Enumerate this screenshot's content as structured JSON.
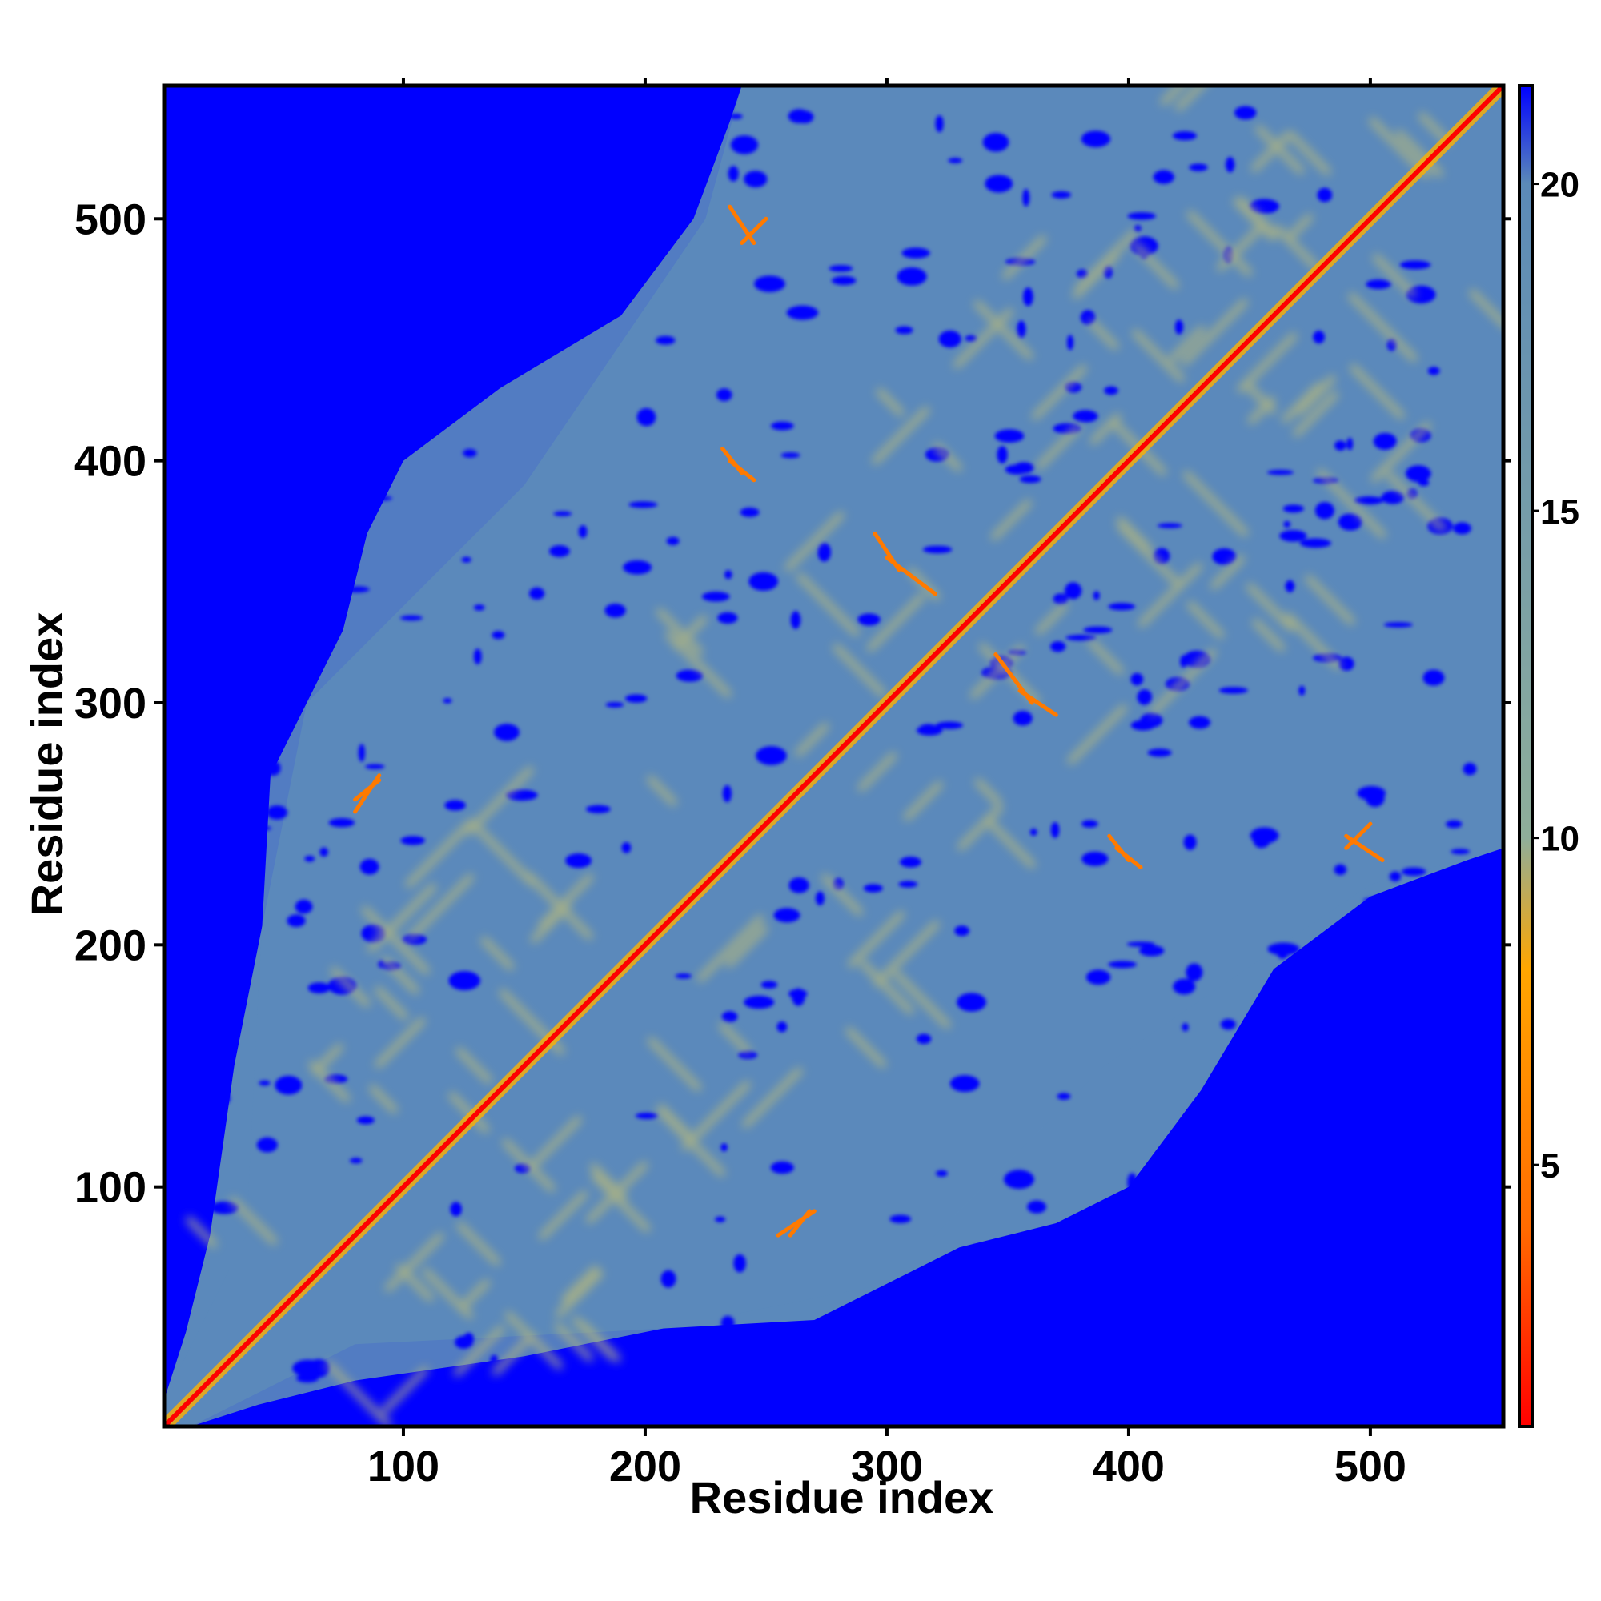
{
  "chart_data": {
    "type": "heatmap",
    "title": "",
    "xlabel": "Residue index",
    "ylabel": "Residue index",
    "xlim": [
      1,
      555
    ],
    "ylim": [
      1,
      555
    ],
    "x_ticks": [
      100,
      200,
      300,
      400,
      500
    ],
    "y_ticks": [
      100,
      200,
      300,
      400,
      500
    ],
    "x_tick_labels": [
      "100",
      "200",
      "300",
      "400",
      "500"
    ],
    "y_tick_labels": [
      "100",
      "200",
      "300",
      "400",
      "500"
    ],
    "colorbar": {
      "range": [
        1,
        21.5
      ],
      "ticks": [
        5,
        10,
        15,
        20
      ],
      "tick_labels": [
        "5",
        "10",
        "15",
        "20"
      ],
      "colors": [
        "#ff0000",
        "#ff6a00",
        "#ffa600",
        "#8fae9a",
        "#5b8ab8",
        "#0000ff"
      ],
      "stops": [
        1,
        4,
        8,
        10,
        20,
        21.5
      ]
    },
    "colors": {
      "far": "#0000ff",
      "medium": "#5b89bb",
      "near": "#ffa500",
      "contact": "#ff0000"
    },
    "description_tokens": {
      "diagonal": "contact",
      "secondary_diagonals": [
        {
          "from": [
            235,
            400
          ],
          "to": [
            245,
            392
          ]
        },
        {
          "from": [
            300,
            360
          ],
          "to": [
            320,
            345
          ]
        },
        {
          "from": [
            355,
            305
          ],
          "to": [
            370,
            295
          ]
        },
        {
          "from": [
            395,
            240
          ],
          "to": [
            405,
            232
          ]
        },
        {
          "from": [
            490,
            245
          ],
          "to": [
            505,
            235
          ]
        },
        {
          "from": [
            255,
            80
          ],
          "to": [
            270,
            90
          ]
        },
        {
          "from": [
            80,
            260
          ],
          "to": [
            90,
            268
          ]
        },
        {
          "from": [
            240,
            490
          ],
          "to": [
            250,
            500
          ]
        }
      ]
    }
  }
}
